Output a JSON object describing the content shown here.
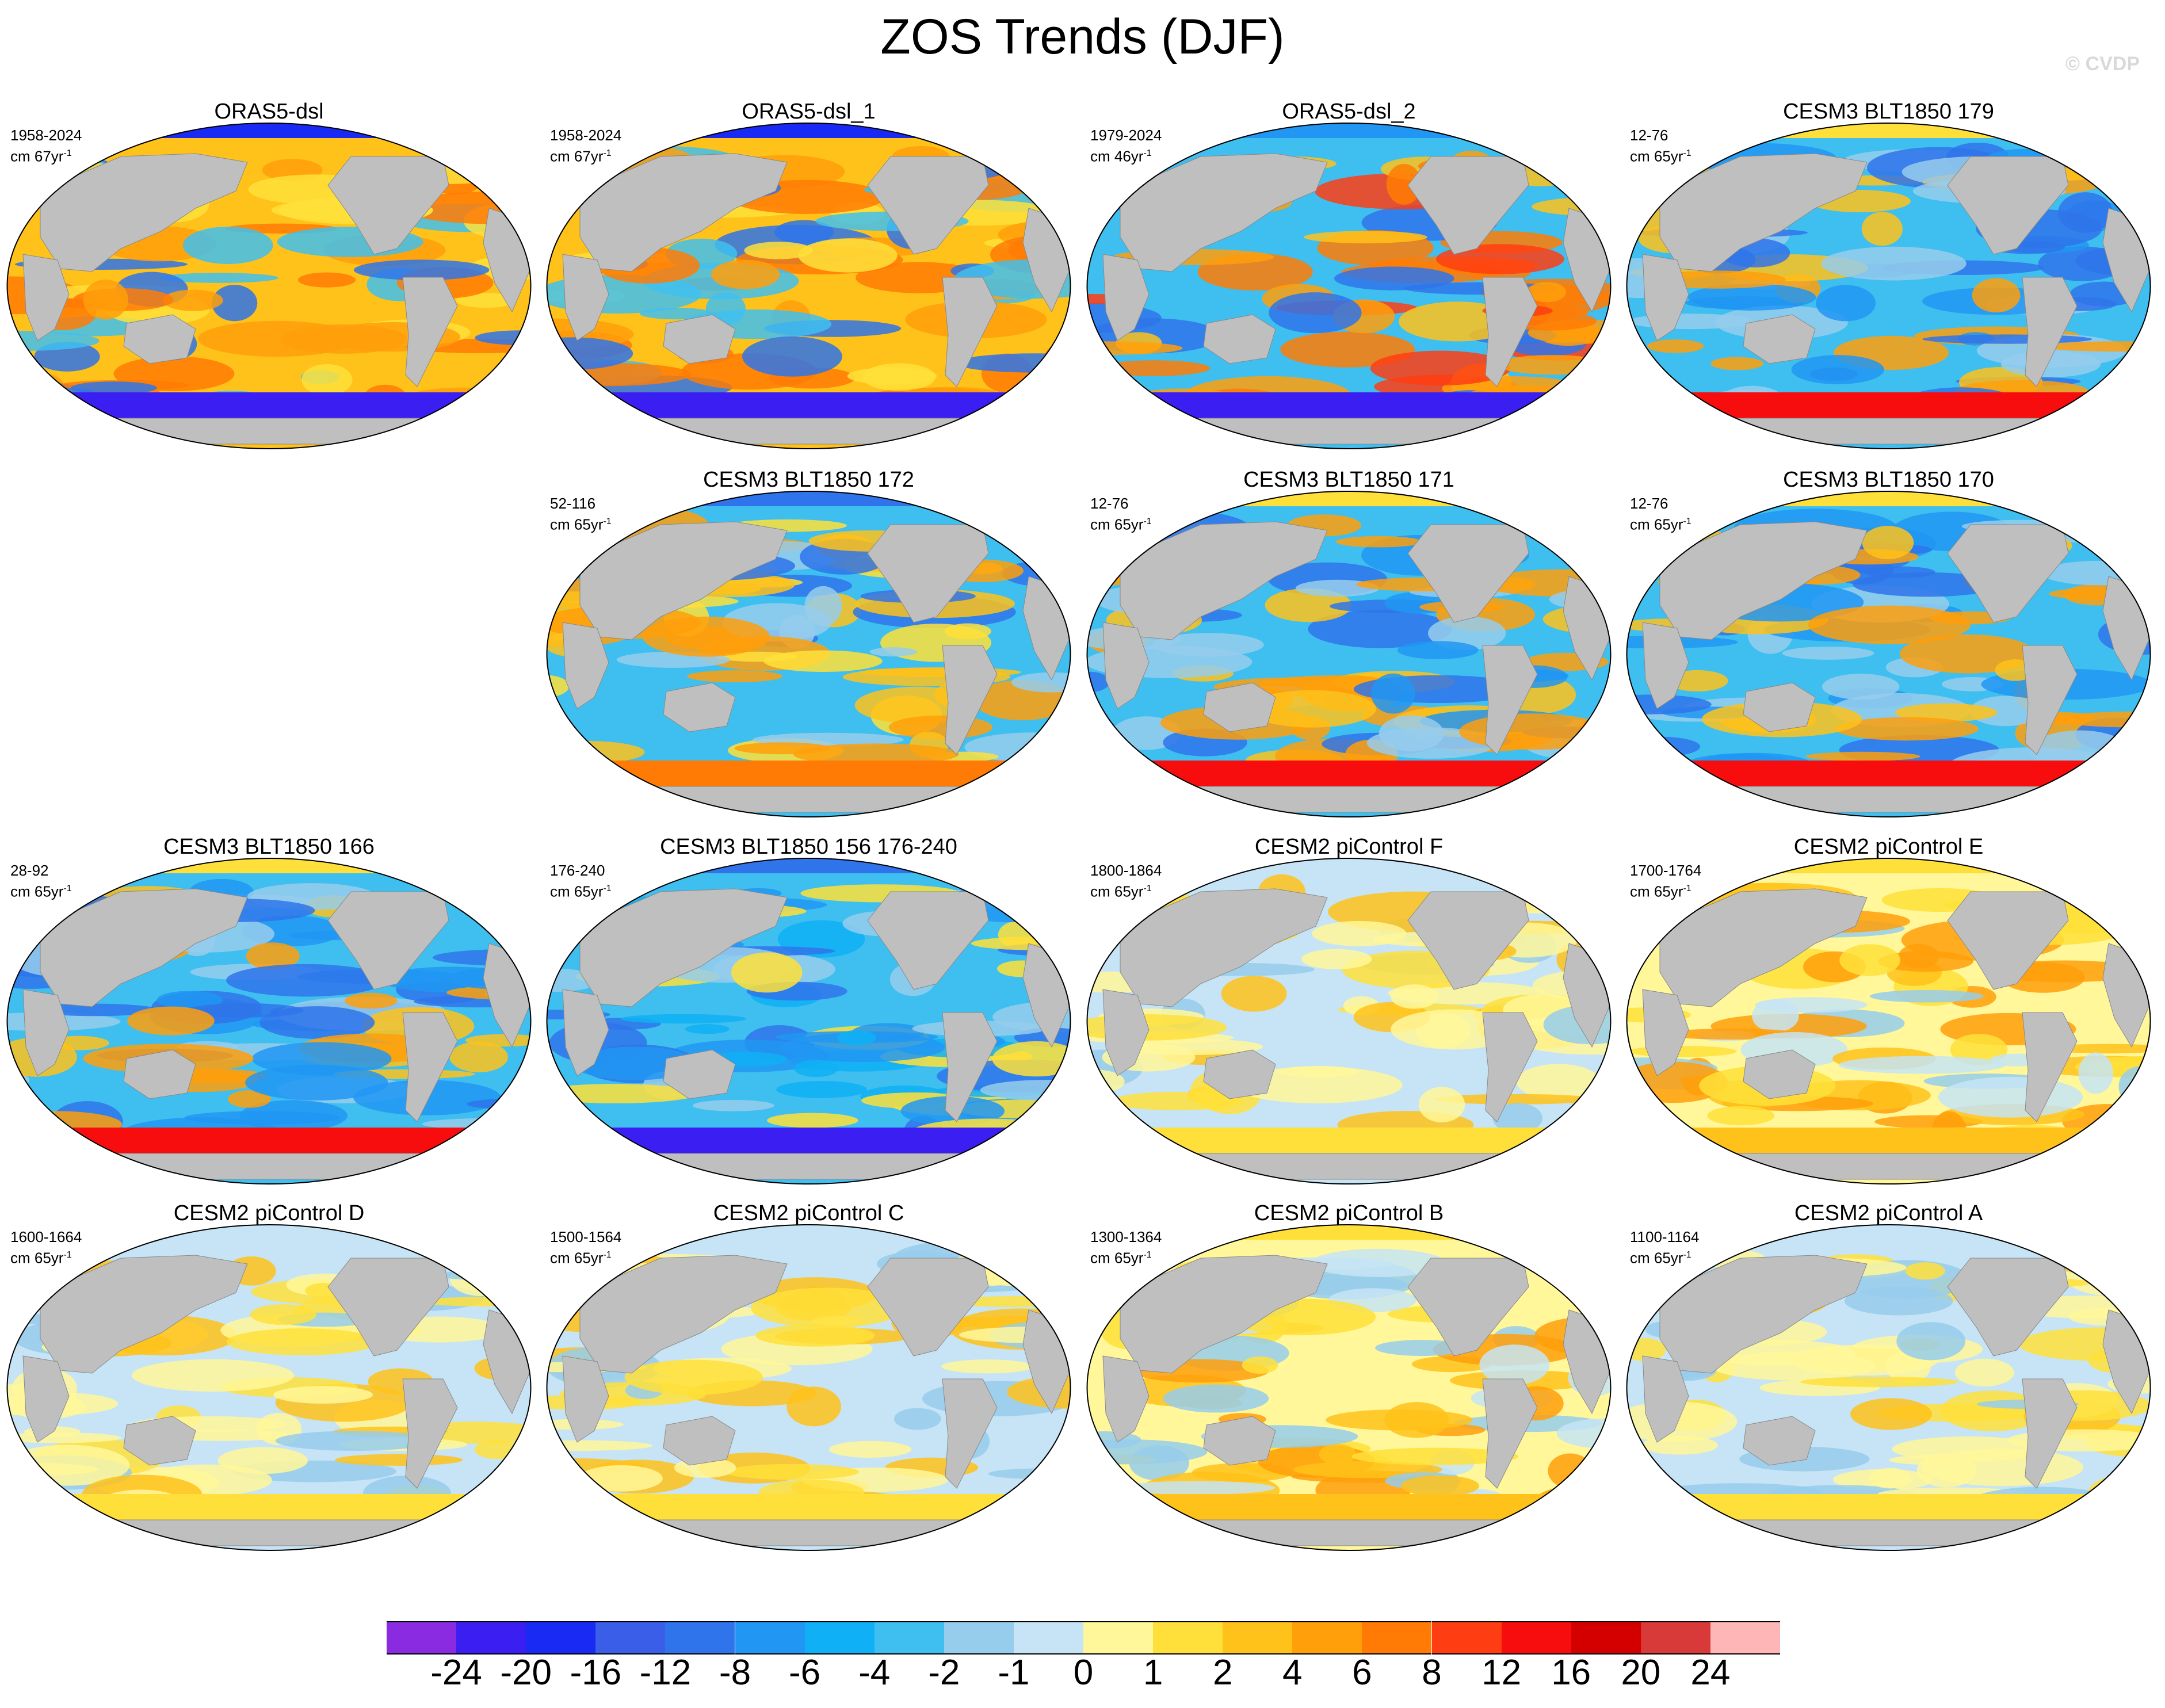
{
  "title": "ZOS Trends (DJF)",
  "watermark": "© CVDP",
  "panels": [
    {
      "title": "ORAS5-dsl",
      "period": "1958-2024",
      "units": "cm 67yr",
      "units_sup": "-1",
      "pattern": "warm-mix",
      "col": 0,
      "row": 0
    },
    {
      "title": "ORAS5-dsl_1",
      "period": "1958-2024",
      "units": "cm 67yr",
      "units_sup": "-1",
      "pattern": "warm-mix",
      "col": 1,
      "row": 0
    },
    {
      "title": "ORAS5-dsl_2",
      "period": "1979-2024",
      "units": "cm 46yr",
      "units_sup": "-1",
      "pattern": "warm-west",
      "col": 2,
      "row": 0
    },
    {
      "title": "CESM3 BLT1850 179",
      "period": "12-76",
      "units": "cm 65yr",
      "units_sup": "-1",
      "pattern": "cool-south-red",
      "col": 3,
      "row": 0
    },
    {
      "title": "CESM3 BLT1850 172",
      "period": "52-116",
      "units": "cm 65yr",
      "units_sup": "-1",
      "pattern": "cool-mixed",
      "col": 1,
      "row": 1
    },
    {
      "title": "CESM3 BLT1850 171",
      "period": "12-76",
      "units": "cm 65yr",
      "units_sup": "-1",
      "pattern": "cool-south-red",
      "col": 2,
      "row": 1
    },
    {
      "title": "CESM3 BLT1850 170",
      "period": "12-76",
      "units": "cm 65yr",
      "units_sup": "-1",
      "pattern": "cool-south-red",
      "col": 3,
      "row": 1
    },
    {
      "title": "CESM3 BLT1850 166",
      "period": "28-92",
      "units": "cm 65yr",
      "units_sup": "-1",
      "pattern": "cool-south-red",
      "col": 0,
      "row": 2
    },
    {
      "title": "CESM3 BLT1850 156 176-240",
      "period": "176-240",
      "units": "cm 65yr",
      "units_sup": "-1",
      "pattern": "cool-south-blue",
      "col": 1,
      "row": 2
    },
    {
      "title": "CESM2 piControl F",
      "period": "1800-1864",
      "units": "cm 65yr",
      "units_sup": "-1",
      "pattern": "pale",
      "col": 2,
      "row": 2
    },
    {
      "title": "CESM2 piControl E",
      "period": "1700-1764",
      "units": "cm 65yr",
      "units_sup": "-1",
      "pattern": "pale-warm",
      "col": 3,
      "row": 2
    },
    {
      "title": "CESM2 piControl D",
      "period": "1600-1664",
      "units": "cm 65yr",
      "units_sup": "-1",
      "pattern": "pale",
      "col": 0,
      "row": 3
    },
    {
      "title": "CESM2 piControl C",
      "period": "1500-1564",
      "units": "cm 65yr",
      "units_sup": "-1",
      "pattern": "pale",
      "col": 1,
      "row": 3
    },
    {
      "title": "CESM2 piControl B",
      "period": "1300-1364",
      "units": "cm 65yr",
      "units_sup": "-1",
      "pattern": "pale-warm",
      "col": 2,
      "row": 3
    },
    {
      "title": "CESM2 piControl A",
      "period": "1100-1164",
      "units": "cm 65yr",
      "units_sup": "-1",
      "pattern": "pale",
      "col": 3,
      "row": 3
    }
  ],
  "colorbar": {
    "colors": [
      "#8a2be2",
      "#3b1ff2",
      "#1a2af5",
      "#3a5ee8",
      "#2f74ea",
      "#2196f3",
      "#0fb0f5",
      "#3fbff0",
      "#96ccec",
      "#c6e4f5",
      "#fff79a",
      "#ffe03a",
      "#ffc21a",
      "#ff9f0a",
      "#ff7b05",
      "#ff3d12",
      "#f70d0d",
      "#d40000",
      "#d83a3a",
      "#ffb6b6"
    ],
    "labels": [
      "-24",
      "-20",
      "-16",
      "-12",
      "-8",
      "-6",
      "-4",
      "-2",
      "-1",
      "0",
      "1",
      "2",
      "4",
      "6",
      "8",
      "12",
      "16",
      "20",
      "24"
    ]
  },
  "land_color": "#bfbfbf"
}
